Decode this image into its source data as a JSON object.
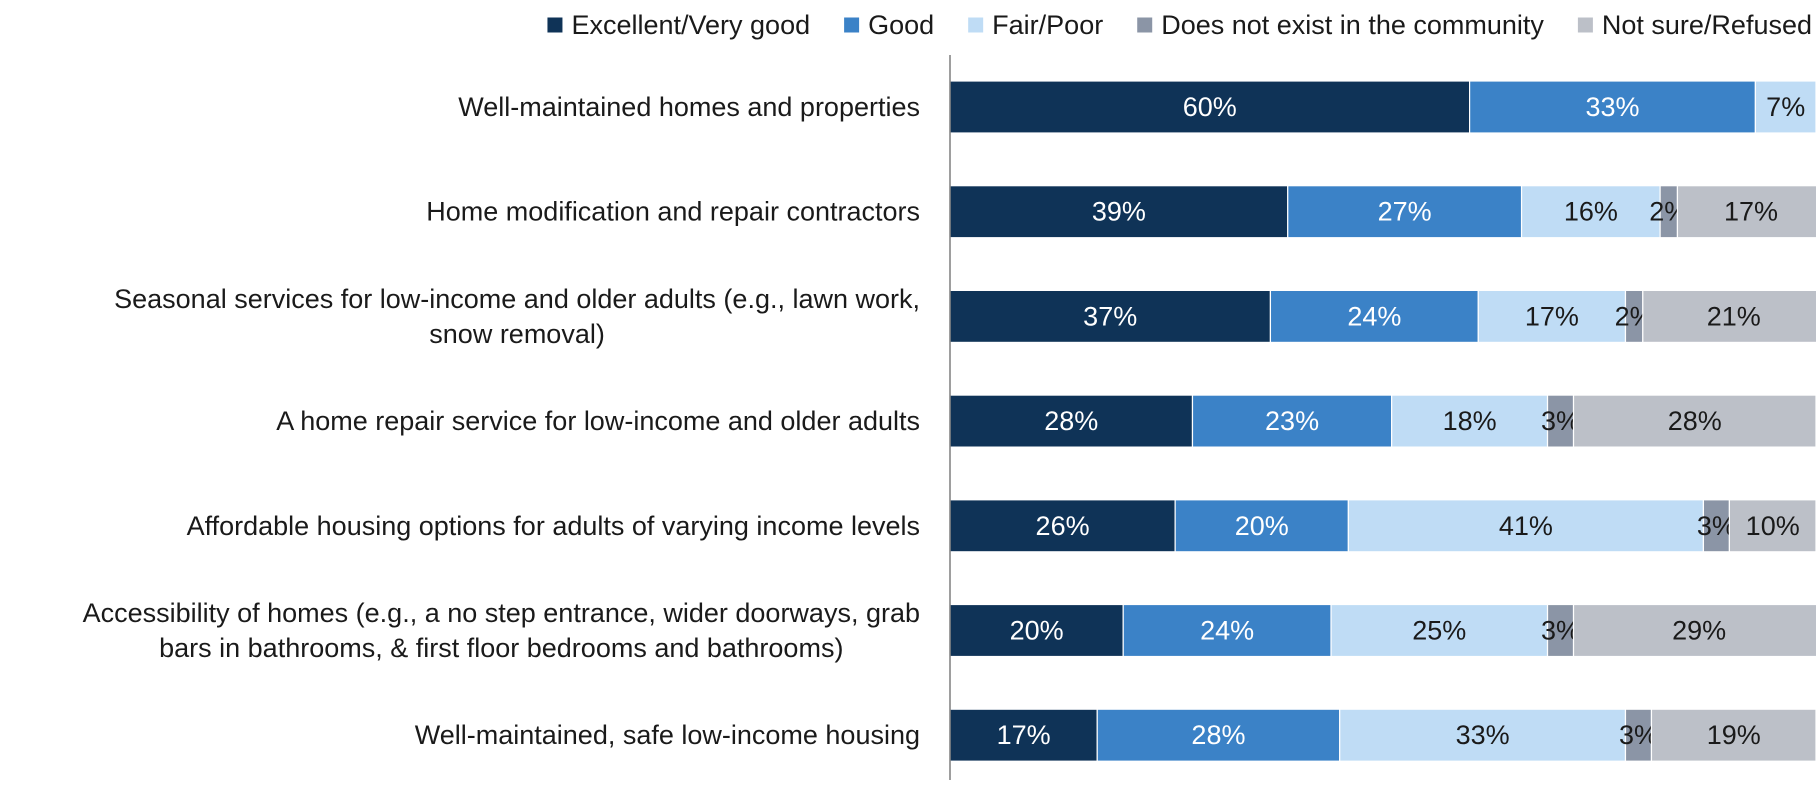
{
  "chart_data": {
    "type": "bar",
    "orientation": "horizontal",
    "stacked": true,
    "title": "",
    "xlabel": "",
    "ylabel": "",
    "xlim": [
      0,
      100
    ],
    "value_format": "percent",
    "grid": false,
    "legend_position": "top",
    "categories": [
      "Well-maintained homes and properties",
      "Home modification and repair contractors",
      "Seasonal services  for low-income and older adults (e.g., lawn work, snow removal)",
      "A home repair service for low-income and older adults",
      "Affordable housing options for adults of varying income levels",
      "Accessibility of homes (e.g., a no step entrance, wider doorways, grab bars in bathrooms, & first floor bedrooms and bathrooms)",
      "Well-maintained, safe low-income housing"
    ],
    "category_lines": [
      [
        "Well-maintained homes and properties"
      ],
      [
        "Home modification and repair contractors"
      ],
      [
        "Seasonal services  for low-income and older adults (e.g., lawn work,",
        "snow removal)"
      ],
      [
        "A home repair service for low-income and older adults"
      ],
      [
        "Affordable housing options for adults of varying income levels"
      ],
      [
        "Accessibility of homes (e.g., a no step entrance, wider doorways, grab",
        "bars in bathrooms, & first floor bedrooms and bathrooms)"
      ],
      [
        "Well-maintained, safe low-income housing"
      ]
    ],
    "series": [
      {
        "name": "Excellent/Very good",
        "color": "#0f3357",
        "label_color": "#ffffff",
        "values": [
          60,
          39,
          37,
          28,
          26,
          20,
          17
        ]
      },
      {
        "name": "Good",
        "color": "#3b82c7",
        "label_color": "#ffffff",
        "values": [
          33,
          27,
          24,
          23,
          20,
          24,
          28
        ]
      },
      {
        "name": "Fair/Poor",
        "color": "#bfdcf5",
        "label_color": "#1a1a1a",
        "values": [
          7,
          16,
          17,
          18,
          41,
          25,
          33
        ]
      },
      {
        "name": "Does not exist in the community",
        "color": "#8b95a6",
        "label_color": "#1a1a1a",
        "values": [
          0,
          2,
          2,
          3,
          3,
          3,
          3
        ]
      },
      {
        "name": "Not sure/Refused",
        "color": "#bcc0c8",
        "label_color": "#1a1a1a",
        "values": [
          0,
          17,
          21,
          28,
          10,
          29,
          19
        ]
      }
    ]
  }
}
